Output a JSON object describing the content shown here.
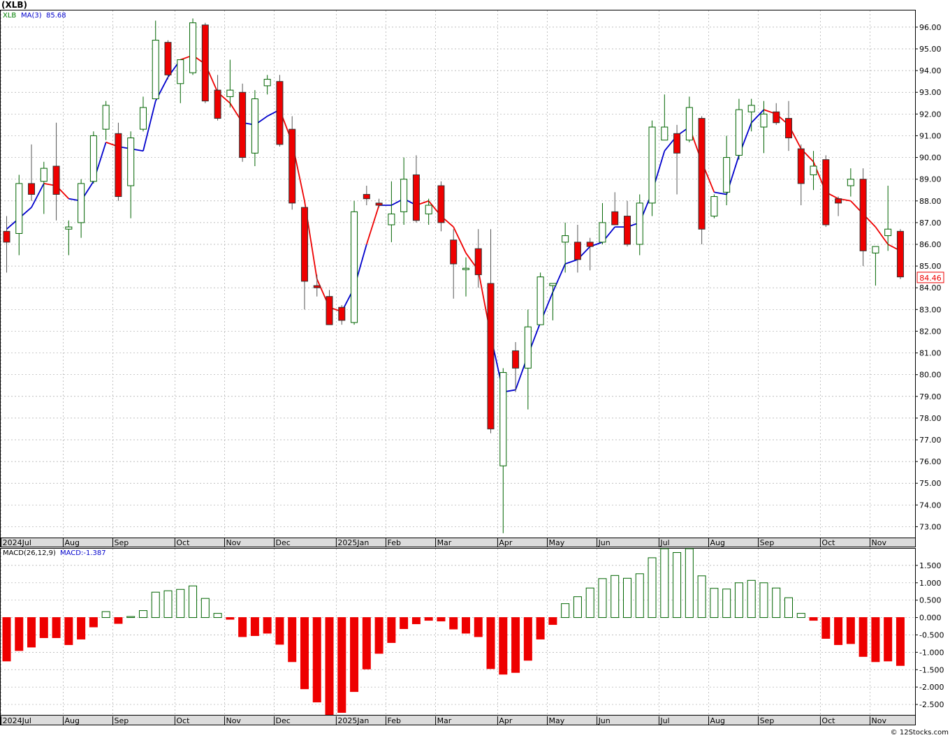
{
  "chart_data": [
    {
      "type": "candlestick",
      "panel": "price",
      "title": "(XLB)",
      "legend": [
        {
          "label": "XLB",
          "color": "#008000"
        },
        {
          "label": "MA(3)",
          "color": "#0000cc"
        },
        {
          "label": "85.68",
          "color": "#0000cc"
        }
      ],
      "last_price_label": "84.46",
      "last_price": 84.46,
      "ylim": [
        72.5,
        96.8
      ],
      "yticks": [
        73,
        74,
        75,
        76,
        77,
        78,
        79,
        80,
        81,
        82,
        83,
        84,
        85,
        86,
        87,
        88,
        89,
        90,
        91,
        92,
        93,
        94,
        95,
        96
      ],
      "ytick_labels": [
        "73.00",
        "74.00",
        "75.00",
        "76.00",
        "77.00",
        "78.00",
        "79.00",
        "80.00",
        "81.00",
        "82.00",
        "83.00",
        "84.00",
        "85.00",
        "86.00",
        "87.00",
        "88.00",
        "89.00",
        "90.00",
        "91.00",
        "92.00",
        "93.00",
        "94.00",
        "95.00",
        "96.00"
      ],
      "month_labels": [
        {
          "label": "2024Jul",
          "week": 0
        },
        {
          "label": "Aug",
          "week": 5
        },
        {
          "label": "Sep",
          "week": 9
        },
        {
          "label": "Oct",
          "week": 14
        },
        {
          "label": "Nov",
          "week": 18
        },
        {
          "label": "Dec",
          "week": 22
        },
        {
          "label": "2025Jan",
          "week": 27
        },
        {
          "label": "Feb",
          "week": 31
        },
        {
          "label": "Mar",
          "week": 35
        },
        {
          "label": "Apr",
          "week": 40
        },
        {
          "label": "May",
          "week": 44
        },
        {
          "label": "Jun",
          "week": 48
        },
        {
          "label": "Jul",
          "week": 53
        },
        {
          "label": "Aug",
          "week": 57
        },
        {
          "label": "Sep",
          "week": 61
        },
        {
          "label": "Oct",
          "week": 66
        },
        {
          "label": "Nov",
          "week": 70
        }
      ],
      "colors": {
        "up": "#006400",
        "down": "#ee0000",
        "ma_up": "#0000cc",
        "ma_down": "#ee0000",
        "grid": "#aaaaaa"
      },
      "candles": [
        {
          "o": 86.6,
          "h": 87.3,
          "l": 84.7,
          "c": 86.1
        },
        {
          "o": 86.5,
          "h": 89.2,
          "l": 85.5,
          "c": 88.8
        },
        {
          "o": 88.8,
          "h": 90.6,
          "l": 88.0,
          "c": 88.3
        },
        {
          "o": 88.9,
          "h": 89.8,
          "l": 87.4,
          "c": 89.5
        },
        {
          "o": 89.6,
          "h": 91.6,
          "l": 87.1,
          "c": 88.3
        },
        {
          "o": 86.7,
          "h": 87.1,
          "l": 85.5,
          "c": 86.8
        },
        {
          "o": 87.0,
          "h": 89.0,
          "l": 86.3,
          "c": 88.8
        },
        {
          "o": 88.9,
          "h": 91.2,
          "l": 88.8,
          "c": 91.0
        },
        {
          "o": 91.3,
          "h": 92.6,
          "l": 90.8,
          "c": 92.4
        },
        {
          "o": 91.1,
          "h": 91.6,
          "l": 88.0,
          "c": 88.2
        },
        {
          "o": 88.7,
          "h": 91.2,
          "l": 87.2,
          "c": 90.9
        },
        {
          "o": 91.3,
          "h": 92.8,
          "l": 91.2,
          "c": 92.3
        },
        {
          "o": 92.7,
          "h": 96.3,
          "l": 92.7,
          "c": 95.4
        },
        {
          "o": 95.3,
          "h": 95.4,
          "l": 93.6,
          "c": 93.8
        },
        {
          "o": 93.4,
          "h": 94.5,
          "l": 92.5,
          "c": 94.5
        },
        {
          "o": 93.9,
          "h": 96.4,
          "l": 93.8,
          "c": 96.2
        },
        {
          "o": 96.1,
          "h": 96.2,
          "l": 92.5,
          "c": 92.6
        },
        {
          "o": 93.1,
          "h": 93.8,
          "l": 91.7,
          "c": 91.8
        },
        {
          "o": 92.8,
          "h": 94.5,
          "l": 92.3,
          "c": 93.1
        },
        {
          "o": 93.0,
          "h": 93.4,
          "l": 89.8,
          "c": 90.0
        },
        {
          "o": 90.2,
          "h": 93.1,
          "l": 89.6,
          "c": 92.7
        },
        {
          "o": 93.3,
          "h": 93.8,
          "l": 92.9,
          "c": 93.6
        },
        {
          "o": 93.5,
          "h": 93.8,
          "l": 90.5,
          "c": 90.6
        },
        {
          "o": 91.3,
          "h": 91.9,
          "l": 87.6,
          "c": 87.9
        },
        {
          "o": 87.7,
          "h": 87.7,
          "l": 83.0,
          "c": 84.3
        },
        {
          "o": 84.1,
          "h": 84.6,
          "l": 83.6,
          "c": 84.0
        },
        {
          "o": 83.6,
          "h": 83.9,
          "l": 82.3,
          "c": 82.3
        },
        {
          "o": 83.1,
          "h": 83.2,
          "l": 82.3,
          "c": 82.5
        },
        {
          "o": 82.4,
          "h": 88.0,
          "l": 82.3,
          "c": 87.5
        },
        {
          "o": 88.3,
          "h": 88.7,
          "l": 87.8,
          "c": 88.1
        },
        {
          "o": 87.9,
          "h": 88.1,
          "l": 87.7,
          "c": 87.8
        },
        {
          "o": 86.9,
          "h": 88.9,
          "l": 86.1,
          "c": 87.4
        },
        {
          "o": 87.5,
          "h": 90.0,
          "l": 86.9,
          "c": 89.0
        },
        {
          "o": 89.2,
          "h": 90.1,
          "l": 87.0,
          "c": 87.1
        },
        {
          "o": 87.4,
          "h": 88.1,
          "l": 86.9,
          "c": 87.8
        },
        {
          "o": 88.7,
          "h": 88.9,
          "l": 86.6,
          "c": 87.0
        },
        {
          "o": 86.2,
          "h": 86.7,
          "l": 83.5,
          "c": 85.1
        },
        {
          "o": 84.9,
          "h": 85.4,
          "l": 83.6,
          "c": 84.9
        },
        {
          "o": 85.8,
          "h": 86.7,
          "l": 84.0,
          "c": 84.6
        },
        {
          "o": 84.2,
          "h": 86.7,
          "l": 77.3,
          "c": 77.5
        },
        {
          "o": 75.8,
          "h": 80.3,
          "l": 72.7,
          "c": 80.1
        },
        {
          "o": 81.1,
          "h": 81.5,
          "l": 79.2,
          "c": 80.3
        },
        {
          "o": 80.3,
          "h": 83.0,
          "l": 78.4,
          "c": 82.2
        },
        {
          "o": 82.3,
          "h": 84.7,
          "l": 82.3,
          "c": 84.5
        },
        {
          "o": 84.1,
          "h": 84.2,
          "l": 82.5,
          "c": 84.2
        },
        {
          "o": 86.1,
          "h": 87.0,
          "l": 84.7,
          "c": 86.4
        },
        {
          "o": 86.1,
          "h": 86.9,
          "l": 84.7,
          "c": 85.3
        },
        {
          "o": 86.1,
          "h": 86.3,
          "l": 84.8,
          "c": 85.9
        },
        {
          "o": 86.1,
          "h": 87.9,
          "l": 86.0,
          "c": 87.0
        },
        {
          "o": 87.5,
          "h": 88.4,
          "l": 86.9,
          "c": 86.9
        },
        {
          "o": 87.3,
          "h": 88.0,
          "l": 85.9,
          "c": 86.0
        },
        {
          "o": 86.0,
          "h": 88.3,
          "l": 85.5,
          "c": 87.9
        },
        {
          "o": 87.9,
          "h": 91.7,
          "l": 87.3,
          "c": 91.4
        },
        {
          "o": 90.8,
          "h": 92.9,
          "l": 90.8,
          "c": 91.4
        },
        {
          "o": 91.1,
          "h": 91.5,
          "l": 88.3,
          "c": 90.2
        },
        {
          "o": 90.8,
          "h": 92.8,
          "l": 90.7,
          "c": 92.3
        },
        {
          "o": 91.8,
          "h": 91.9,
          "l": 86.0,
          "c": 86.7
        },
        {
          "o": 87.3,
          "h": 88.3,
          "l": 87.2,
          "c": 88.2
        },
        {
          "o": 88.4,
          "h": 91.0,
          "l": 87.8,
          "c": 90.0
        },
        {
          "o": 90.1,
          "h": 92.7,
          "l": 89.9,
          "c": 92.2
        },
        {
          "o": 92.1,
          "h": 92.7,
          "l": 91.2,
          "c": 92.4
        },
        {
          "o": 91.4,
          "h": 92.6,
          "l": 90.2,
          "c": 92.0
        },
        {
          "o": 92.1,
          "h": 92.5,
          "l": 91.5,
          "c": 91.6
        },
        {
          "o": 91.8,
          "h": 92.6,
          "l": 90.3,
          "c": 90.9
        },
        {
          "o": 90.4,
          "h": 90.6,
          "l": 87.8,
          "c": 88.8
        },
        {
          "o": 89.2,
          "h": 90.3,
          "l": 88.5,
          "c": 89.6
        },
        {
          "o": 89.9,
          "h": 90.1,
          "l": 86.8,
          "c": 86.9
        },
        {
          "o": 88.1,
          "h": 88.2,
          "l": 87.3,
          "c": 87.9
        },
        {
          "o": 88.7,
          "h": 89.5,
          "l": 88.2,
          "c": 89.0
        },
        {
          "o": 89.0,
          "h": 89.5,
          "l": 85.0,
          "c": 85.7
        },
        {
          "o": 85.6,
          "h": 85.9,
          "l": 84.1,
          "c": 85.9
        },
        {
          "o": 86.4,
          "h": 88.7,
          "l": 85.7,
          "c": 86.7
        },
        {
          "o": 86.6,
          "h": 86.7,
          "l": 84.4,
          "c": 84.5
        }
      ],
      "ma3": [
        86.7,
        87.2,
        87.7,
        88.8,
        88.7,
        88.1,
        88.0,
        88.9,
        90.7,
        90.5,
        90.4,
        90.3,
        92.6,
        93.7,
        94.5,
        94.7,
        94.3,
        93.0,
        92.5,
        91.6,
        91.5,
        91.9,
        92.2,
        90.7,
        88.0,
        84.4,
        83.1,
        82.9,
        84.0,
        86.0,
        87.8,
        87.8,
        88.1,
        87.8,
        88.0,
        87.3,
        86.8,
        85.6,
        84.8,
        81.8,
        79.2,
        79.3,
        80.9,
        82.4,
        83.8,
        85.1,
        85.3,
        85.9,
        86.1,
        86.8,
        86.8,
        87.0,
        88.4,
        90.3,
        91.0,
        91.4,
        89.8,
        88.4,
        88.3,
        90.1,
        91.6,
        92.2,
        92.0,
        91.5,
        90.4,
        89.8,
        88.4,
        88.1,
        88.0,
        87.4,
        86.8,
        86.0,
        85.7
      ],
      "ma3_direction": [
        "u",
        "u",
        "u",
        "u",
        "d",
        "d",
        "u",
        "u",
        "u",
        "d",
        "u",
        "u",
        "u",
        "u",
        "u",
        "d",
        "d",
        "d",
        "d",
        "d",
        "u",
        "u",
        "u",
        "d",
        "d",
        "d",
        "d",
        "d",
        "u",
        "u",
        "d",
        "u",
        "u",
        "u",
        "d",
        "d",
        "d",
        "d",
        "d",
        "d",
        "u",
        "u",
        "u",
        "u",
        "u",
        "u",
        "u",
        "u",
        "u",
        "u",
        "u",
        "u",
        "u",
        "u",
        "u",
        "u",
        "d",
        "d",
        "u",
        "u",
        "u",
        "u",
        "d",
        "d",
        "d",
        "d",
        "d",
        "d",
        "d",
        "d",
        "d",
        "d",
        "d"
      ]
    },
    {
      "type": "bar",
      "panel": "macd",
      "title": "MACD(26,12,9)",
      "legend": [
        {
          "label": "MACD(26,12,9)",
          "color": "#000000"
        },
        {
          "label": "MACD:-1.387",
          "color": "#0000cc"
        }
      ],
      "ylim": [
        -2.8,
        2.0
      ],
      "yticks": [
        -2.5,
        -2.0,
        -1.5,
        -1.0,
        -0.5,
        0.0,
        0.5,
        1.0,
        1.5
      ],
      "ytick_labels": [
        "-2.500",
        "-2.000",
        "-1.500",
        "-1.000",
        "-0.500",
        "0.000",
        "0.500",
        "1.000",
        "1.500"
      ],
      "month_labels": [
        {
          "label": "2024Jul",
          "week": 0
        },
        {
          "label": "Aug",
          "week": 5
        },
        {
          "label": "Sep",
          "week": 9
        },
        {
          "label": "Oct",
          "week": 14
        },
        {
          "label": "Nov",
          "week": 18
        },
        {
          "label": "Dec",
          "week": 22
        },
        {
          "label": "2025Jan",
          "week": 27
        },
        {
          "label": "Feb",
          "week": 31
        },
        {
          "label": "Mar",
          "week": 35
        },
        {
          "label": "Apr",
          "week": 40
        },
        {
          "label": "May",
          "week": 44
        },
        {
          "label": "Jun",
          "week": 48
        },
        {
          "label": "Jul",
          "week": 53
        },
        {
          "label": "Aug",
          "week": 57
        },
        {
          "label": "Sep",
          "week": 61
        },
        {
          "label": "Oct",
          "week": 66
        },
        {
          "label": "Nov",
          "week": 70
        }
      ],
      "values": [
        -1.25,
        -0.95,
        -0.85,
        -0.58,
        -0.58,
        -0.78,
        -0.62,
        -0.27,
        0.17,
        -0.17,
        0.03,
        0.2,
        0.73,
        0.77,
        0.81,
        0.91,
        0.55,
        0.12,
        -0.05,
        -0.55,
        -0.52,
        -0.45,
        -0.77,
        -1.27,
        -2.05,
        -2.43,
        -2.8,
        -2.73,
        -2.13,
        -1.48,
        -1.03,
        -0.72,
        -0.32,
        -0.18,
        -0.08,
        -0.1,
        -0.33,
        -0.45,
        -0.55,
        -1.47,
        -1.63,
        -1.58,
        -1.23,
        -0.62,
        -0.2,
        0.4,
        0.6,
        0.85,
        1.12,
        1.21,
        1.13,
        1.26,
        1.72,
        1.98,
        1.87,
        1.98,
        1.2,
        0.84,
        0.82,
        1.0,
        1.07,
        1.0,
        0.85,
        0.57,
        0.12,
        -0.08,
        -0.6,
        -0.78,
        -0.75,
        -1.12,
        -1.27,
        -1.25,
        -1.38
      ]
    }
  ],
  "footer": {
    "credit": "© 12Stocks.com"
  }
}
